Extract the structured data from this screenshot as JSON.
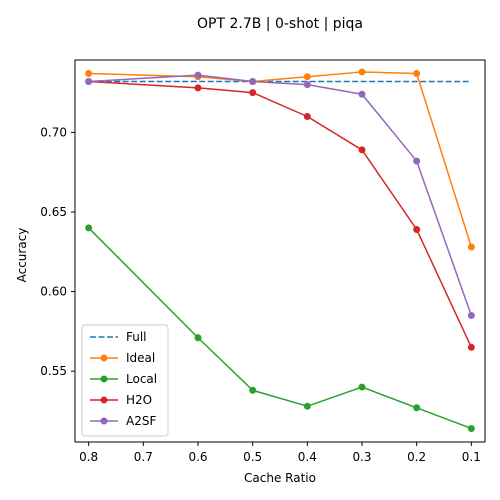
{
  "chart_data": {
    "type": "line",
    "title": "OPT 2.7B | 0-shot | piqa",
    "xlabel": "Cache Ratio",
    "ylabel": "Accuracy",
    "x_ticks": [
      "0.8",
      "0.7",
      "0.6",
      "0.5",
      "0.4",
      "0.3",
      "0.2",
      "0.1"
    ],
    "y_ticks": [
      "0.55",
      "0.60",
      "0.65",
      "0.70"
    ],
    "x_reversed": true,
    "xlim": [
      0.825,
      0.075
    ],
    "ylim": [
      0.5055,
      0.7455
    ],
    "legend_position": "lower-left",
    "series": [
      {
        "name": "Full",
        "color": "#1f77b4",
        "style": "dashed",
        "markers": false,
        "x": [
          0.8,
          0.1
        ],
        "y": [
          0.732,
          0.732
        ]
      },
      {
        "name": "Ideal",
        "color": "#ff7f0e",
        "style": "solid",
        "markers": true,
        "x": [
          0.8,
          0.6,
          0.5,
          0.4,
          0.3,
          0.2,
          0.1
        ],
        "y": [
          0.737,
          0.735,
          0.732,
          0.735,
          0.738,
          0.737,
          0.628
        ]
      },
      {
        "name": "Local",
        "color": "#2ca02c",
        "style": "solid",
        "markers": true,
        "x": [
          0.8,
          0.6,
          0.5,
          0.4,
          0.3,
          0.2,
          0.1
        ],
        "y": [
          0.64,
          0.571,
          0.538,
          0.528,
          0.54,
          0.527,
          0.514
        ]
      },
      {
        "name": "H2O",
        "color": "#d62728",
        "style": "solid",
        "markers": true,
        "x": [
          0.8,
          0.6,
          0.5,
          0.4,
          0.3,
          0.2,
          0.1
        ],
        "y": [
          0.732,
          0.728,
          0.725,
          0.71,
          0.689,
          0.639,
          0.565
        ]
      },
      {
        "name": "A2SF",
        "color": "#9467bd",
        "style": "solid",
        "markers": true,
        "x": [
          0.8,
          0.6,
          0.5,
          0.4,
          0.3,
          0.2,
          0.1
        ],
        "y": [
          0.732,
          0.736,
          0.732,
          0.73,
          0.724,
          0.682,
          0.585
        ]
      }
    ]
  }
}
